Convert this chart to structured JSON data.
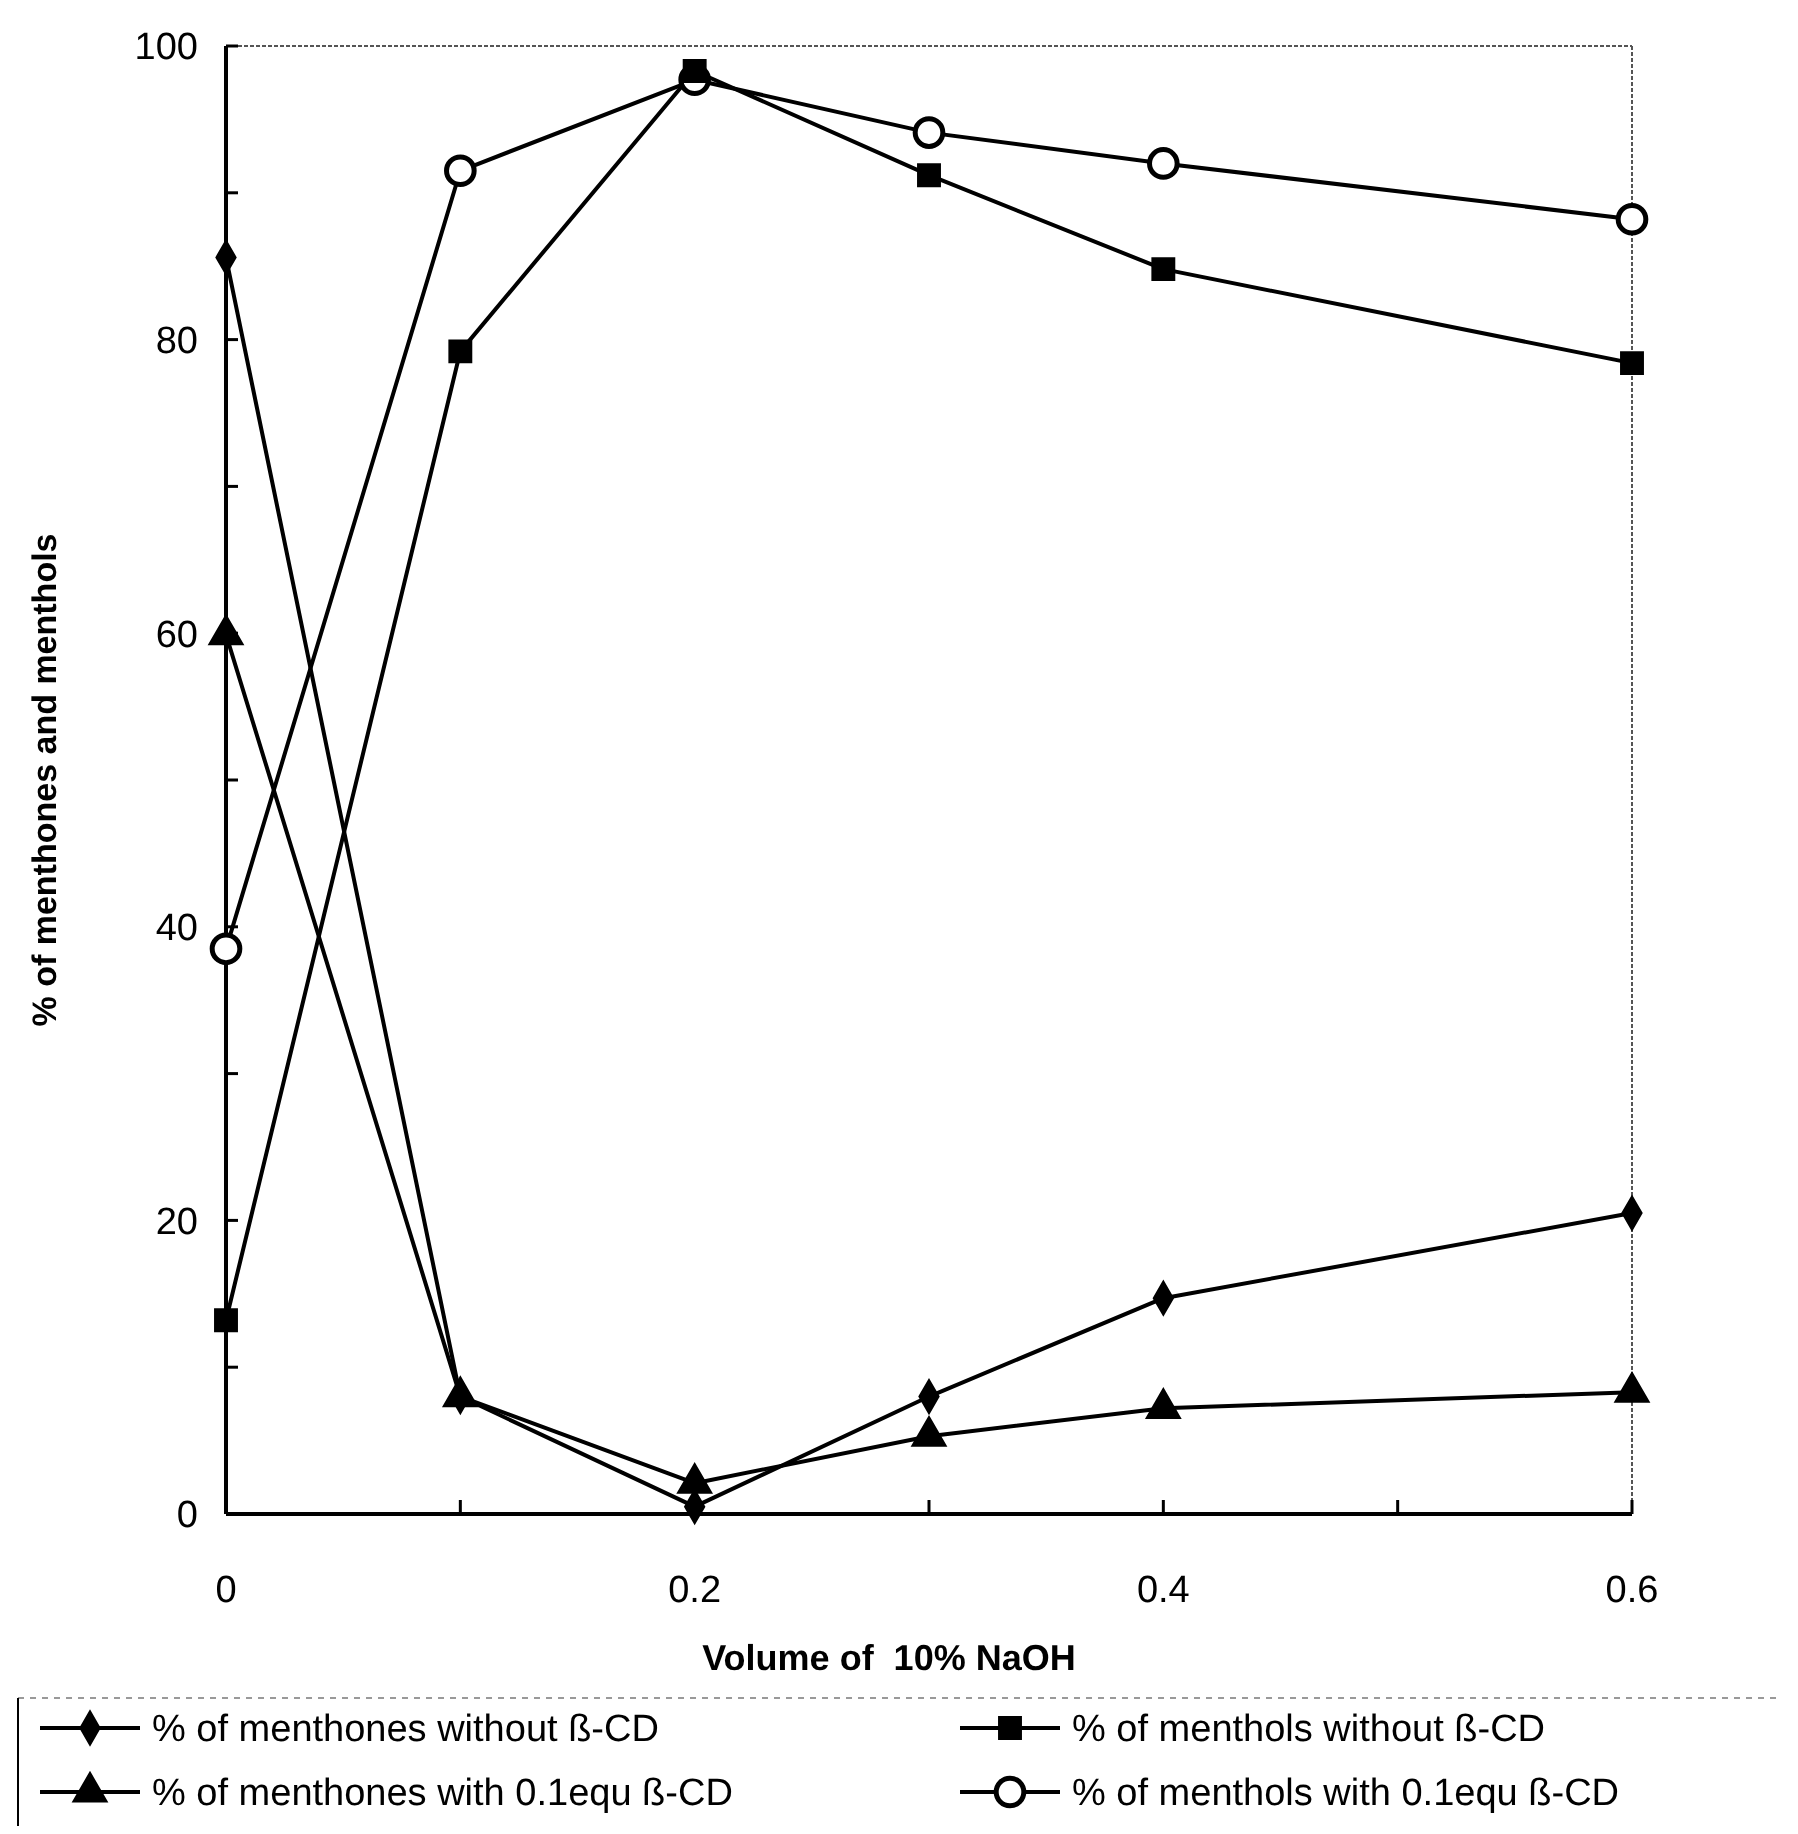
{
  "chart_data": {
    "type": "line",
    "xlabel": "Volume of  10% NaOH",
    "ylabel": "% of menthones and menthols",
    "x": [
      0,
      0.1,
      0.2,
      0.3,
      0.4,
      0.6
    ],
    "series": [
      {
        "name": "% of menthones without ß-CD",
        "color": "#000000",
        "marker": "diamond",
        "values": [
          85.6,
          8.0,
          0.5,
          8.0,
          14.7,
          20.5
        ]
      },
      {
        "name": "% of menthols without ß-CD",
        "color": "#000000",
        "marker": "square",
        "values": [
          13.2,
          79.2,
          98.3,
          91.2,
          84.8,
          78.4
        ]
      },
      {
        "name": "% of menthones with 0.1equ ß-CD",
        "color": "#000000",
        "marker": "triangle",
        "values": [
          59.9,
          8.0,
          2.1,
          5.3,
          7.2,
          8.3
        ]
      },
      {
        "name": "% of menthols with 0.1equ ß-CD",
        "color": "#000000",
        "marker": "circle",
        "values": [
          38.5,
          91.5,
          97.7,
          94.1,
          92.0,
          88.2
        ]
      }
    ],
    "xlim": [
      0,
      0.6
    ],
    "xticks": [
      0,
      {
        "value": 0.1,
        "label": null
      },
      {
        "value": 0.2,
        "label": "0.2"
      },
      {
        "value": 0.3,
        "label": null
      },
      {
        "value": 0.4,
        "label": "0.4"
      },
      {
        "value": 0.5,
        "label": null
      },
      {
        "value": 0.6,
        "label": "0.6"
      }
    ],
    "ylim": [
      0,
      100
    ],
    "yticks": [
      0,
      {
        "value": 10,
        "label": null
      },
      20,
      {
        "value": 30,
        "label": null
      },
      40,
      {
        "value": 50,
        "label": null
      },
      60,
      {
        "value": 70,
        "label": null
      },
      80,
      {
        "value": 90,
        "label": null
      },
      100
    ],
    "grid": false,
    "legend": "bottom",
    "line_style": "solid"
  }
}
